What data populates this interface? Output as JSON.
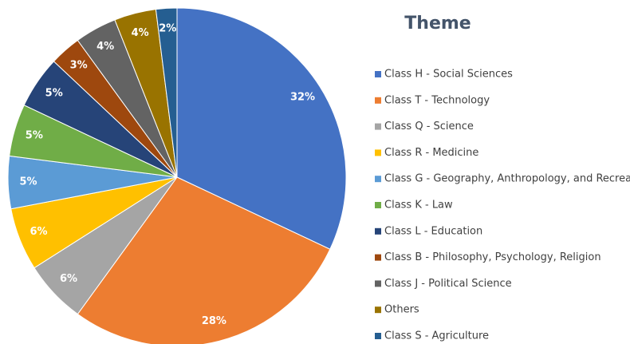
{
  "chart_data": {
    "type": "pie",
    "title": "Theme",
    "categories": [
      "Class H - Social Sciences",
      "Class T - Technology",
      "Class Q - Science",
      "Class R - Medicine",
      "Class G - Geography, Anthropology, and Recreation",
      "Class K - Law",
      "Class L - Education",
      "Class B - Philosophy, Psychology, Religion",
      "Class J - Political Science",
      "Others",
      "Class S - Agriculture"
    ],
    "values": [
      32,
      28,
      6,
      6,
      5,
      5,
      5,
      3,
      4,
      4,
      2
    ],
    "value_labels": [
      "32%",
      "28%",
      "6%",
      "6%",
      "5%",
      "5%",
      "5%",
      "3%",
      "4%",
      "4%",
      "2%"
    ],
    "colors": [
      "#4472c4",
      "#ed7d31",
      "#a5a5a5",
      "#ffc000",
      "#5b9bd5",
      "#70ad47",
      "#264478",
      "#9e480e",
      "#636363",
      "#997300",
      "#255e91"
    ],
    "legend": "right"
  }
}
